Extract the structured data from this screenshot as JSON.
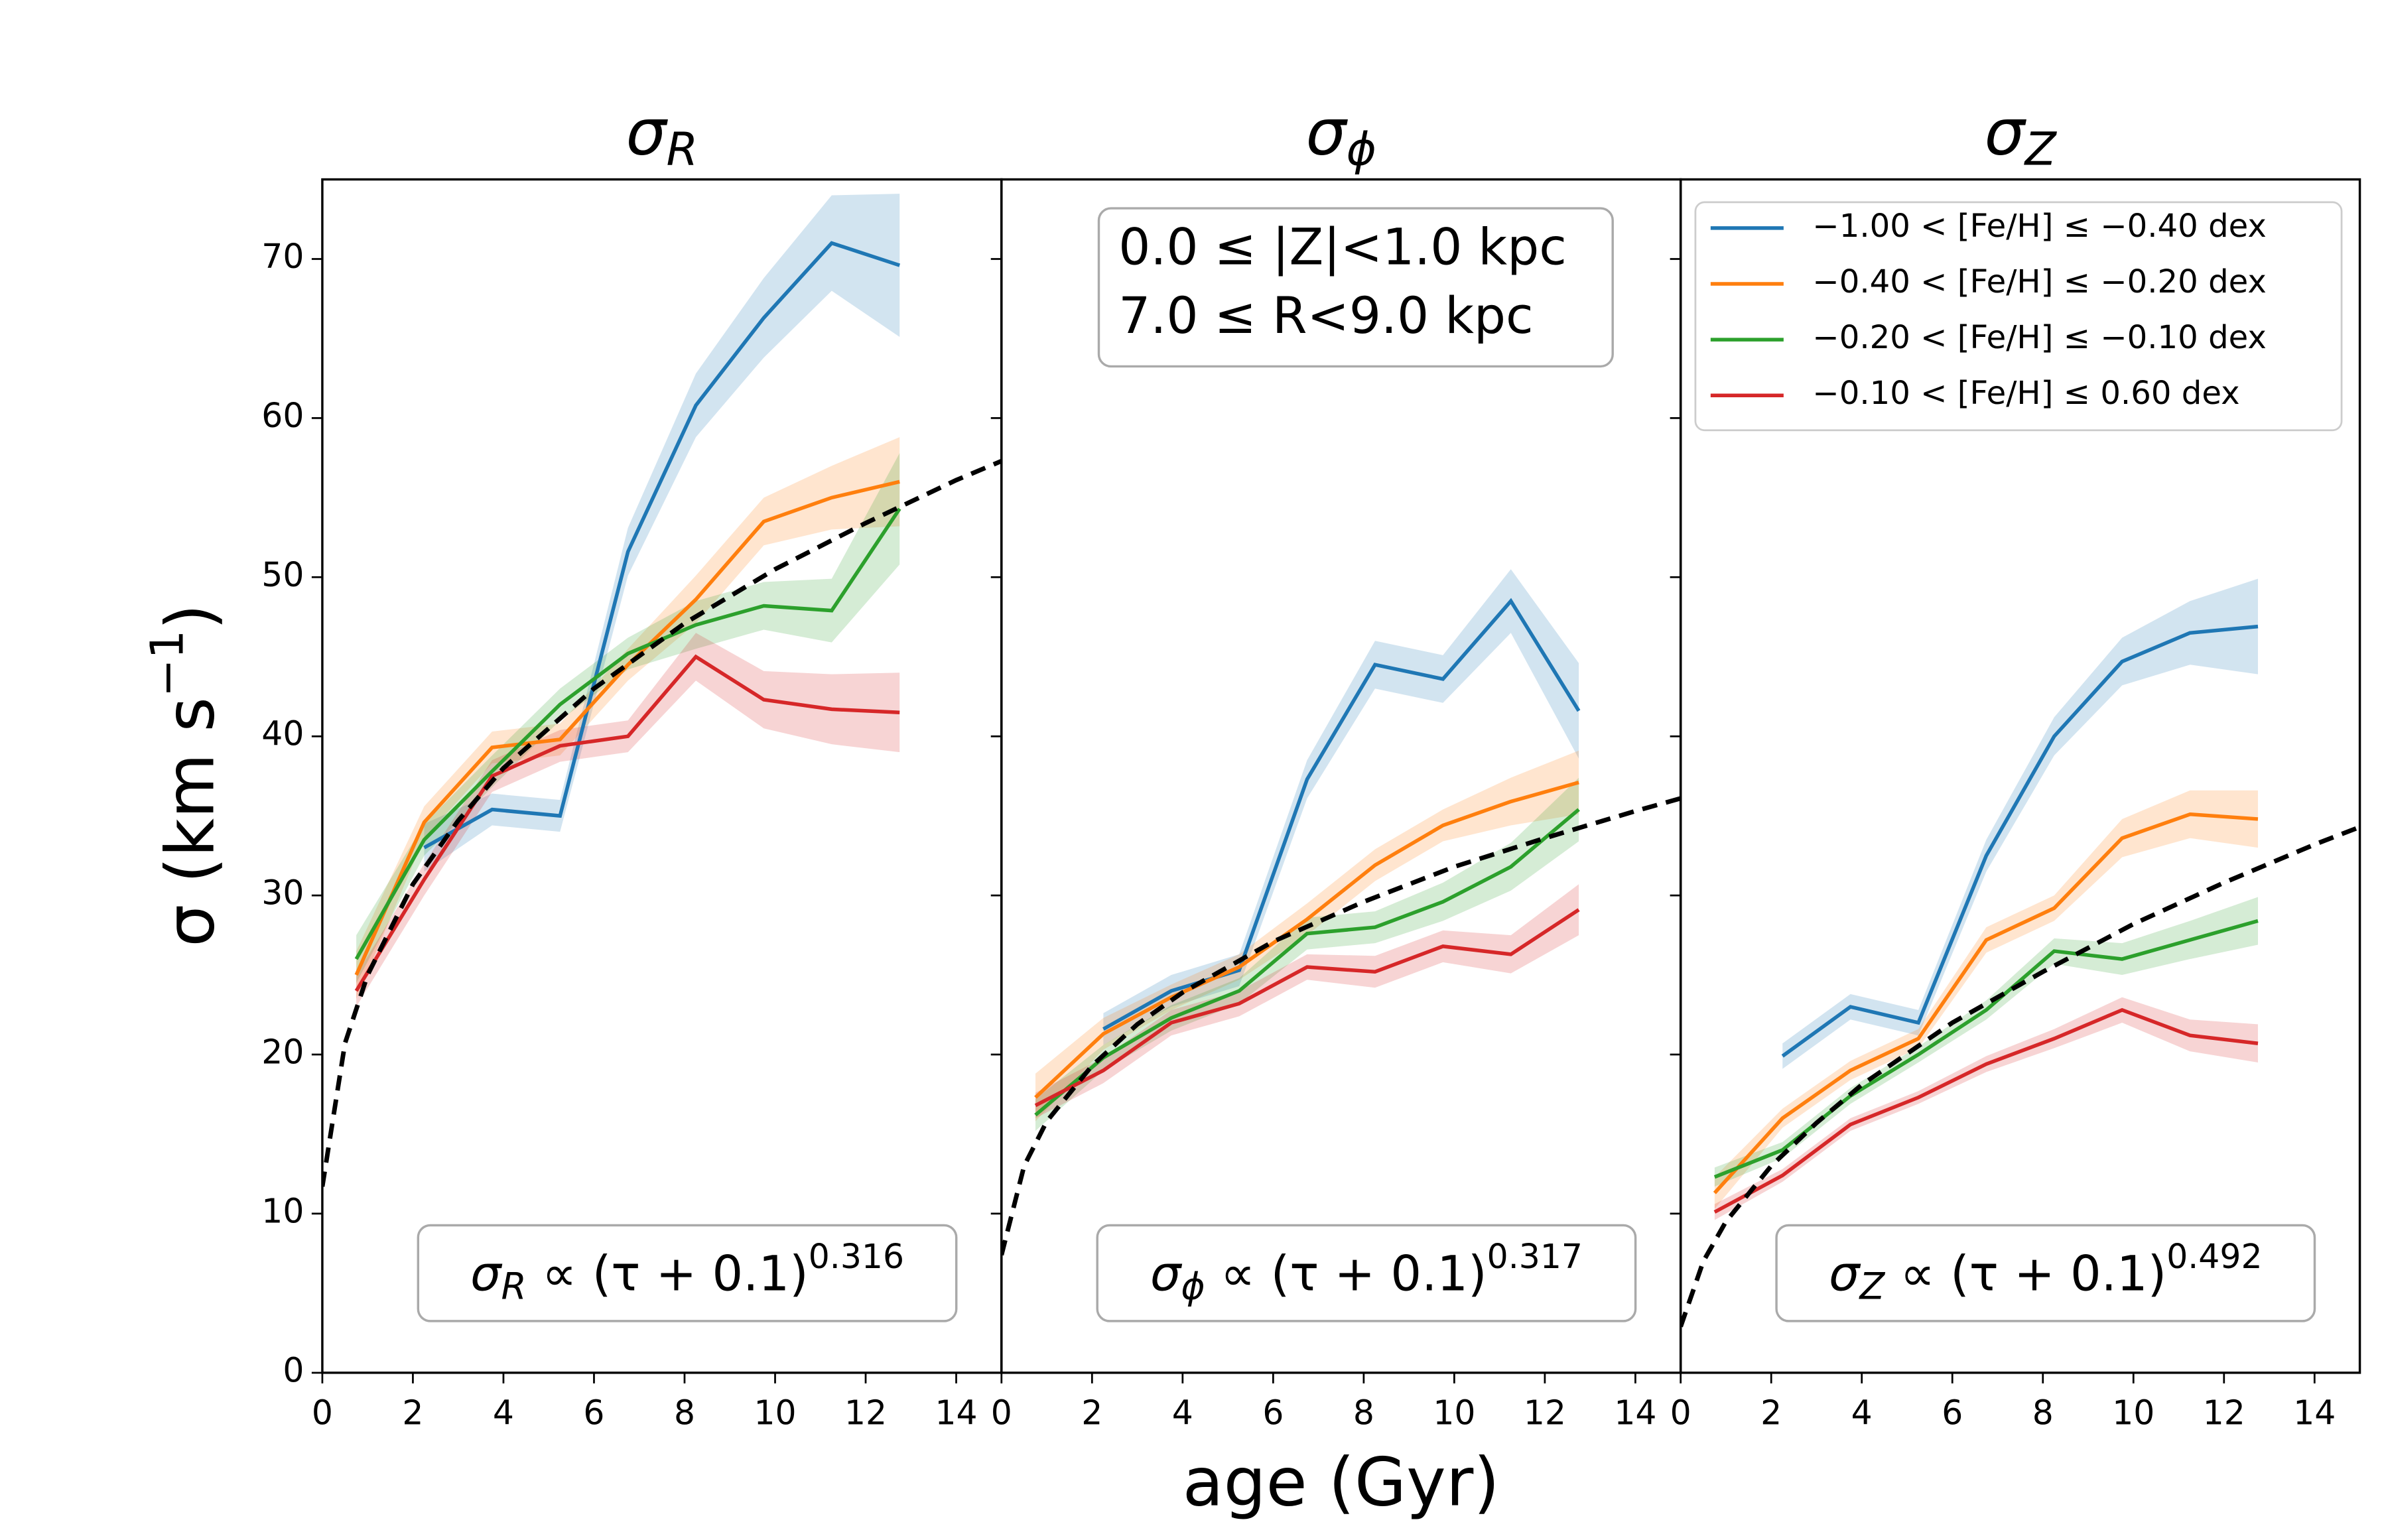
{
  "chart_data": [
    {
      "type": "line",
      "title": "σ",
      "title_subscript": "R",
      "ylabel": "σ (km s",
      "ylabel_superscript": "−1",
      "ylabel_end": ")",
      "x": [
        0.75,
        2.25,
        3.75,
        5.25,
        6.75,
        8.25,
        9.75,
        11.25,
        12.75
      ],
      "xlim": [
        0,
        15
      ],
      "xticks": [
        0,
        2,
        4,
        6,
        8,
        10,
        12,
        14
      ],
      "ylim": [
        0,
        75
      ],
      "yticks": [
        0,
        10,
        20,
        30,
        40,
        50,
        60,
        70
      ],
      "series": [
        {
          "color": "#1f77b4",
          "values": [
            null,
            33,
            35.4,
            35,
            51.6,
            60.8,
            66.3,
            71,
            69.6
          ],
          "errors": [
            null,
            1.5,
            1,
            1,
            1.5,
            2,
            2.5,
            3,
            4.5
          ]
        },
        {
          "color": "#ff7f0e",
          "values": [
            25,
            34.6,
            39.3,
            39.8,
            44.5,
            48.6,
            53.5,
            55,
            56
          ],
          "errors": [
            1.5,
            1,
            1,
            1,
            1,
            1.5,
            1.5,
            2,
            2.8
          ]
        },
        {
          "color": "#2ca02c",
          "values": [
            26,
            33.5,
            37.8,
            42,
            45.2,
            47,
            48.2,
            47.9,
            54.3
          ],
          "errors": [
            1.5,
            1,
            1,
            1,
            1,
            1.5,
            1.5,
            2,
            3.5
          ]
        },
        {
          "color": "#d62728",
          "values": [
            24,
            31,
            37.5,
            39.4,
            40,
            45,
            42.3,
            41.7,
            41.5
          ],
          "errors": [
            1,
            1,
            1,
            1,
            1,
            1.5,
            1.8,
            2.2,
            2.5
          ]
        }
      ],
      "fit": {
        "color": "#000000",
        "x": [
          0,
          0.5,
          1,
          2,
          3,
          4,
          6,
          8,
          10,
          12,
          14,
          15
        ],
        "values": [
          11.7,
          20.7,
          25.0,
          30.7,
          34.7,
          38.0,
          43.0,
          47.1,
          50.5,
          53.4,
          56.1,
          57.3
        ]
      },
      "annotation": {
        "symbol": "σ",
        "subscript": "R",
        "body": " ∝  (τ + 0.1)",
        "exponent": 0.316
      }
    },
    {
      "type": "line",
      "title": "σ",
      "title_subscript": "ϕ",
      "xlabel": "age (Gyr)",
      "x": [
        0.75,
        2.25,
        3.75,
        5.25,
        6.75,
        8.25,
        9.75,
        11.25,
        12.75
      ],
      "xlim": [
        0,
        15
      ],
      "xticks": [
        0,
        2,
        4,
        6,
        8,
        10,
        12,
        14
      ],
      "ylim": [
        0,
        75
      ],
      "yticks": [
        0,
        10,
        20,
        30,
        40,
        50,
        60,
        70
      ],
      "series": [
        {
          "color": "#1f77b4",
          "values": [
            null,
            21.6,
            24,
            25.3,
            37.3,
            44.5,
            43.6,
            48.5,
            41.6
          ],
          "errors": [
            null,
            1,
            1,
            1,
            1.2,
            1.5,
            1.5,
            2,
            3
          ]
        },
        {
          "color": "#ff7f0e",
          "values": [
            17.3,
            21.3,
            23.6,
            25.5,
            28.5,
            31.9,
            34.4,
            35.9,
            37.1
          ],
          "errors": [
            1.5,
            1,
            0.8,
            0.8,
            1,
            1,
            1,
            1.5,
            2
          ]
        },
        {
          "color": "#2ca02c",
          "values": [
            16.2,
            19.8,
            22.3,
            24,
            27.6,
            28,
            29.6,
            31.8,
            35.4
          ],
          "errors": [
            1,
            0.8,
            0.8,
            0.8,
            1,
            1,
            1.2,
            1.5,
            2
          ]
        },
        {
          "color": "#d62728",
          "values": [
            16.8,
            19,
            22,
            23.2,
            25.5,
            25.2,
            26.8,
            26.3,
            29.1
          ],
          "errors": [
            0.8,
            0.8,
            0.8,
            0.8,
            0.8,
            1,
            1,
            1.2,
            1.6
          ]
        }
      ],
      "fit": {
        "color": "#000000",
        "x": [
          0,
          0.5,
          1,
          2,
          3,
          4,
          6,
          8,
          10,
          12,
          14,
          15
        ],
        "values": [
          7.4,
          13.0,
          15.8,
          19.3,
          21.9,
          23.9,
          27.1,
          29.6,
          31.8,
          33.6,
          35.3,
          36.1
        ]
      },
      "annotation": {
        "symbol": "σ",
        "subscript": "ϕ",
        "body": " ∝  (τ + 0.1)",
        "exponent": 0.317
      },
      "text_box": [
        "0.0 ≤ |Z|<1.0 kpc",
        "7.0 ≤ R<9.0 kpc"
      ]
    },
    {
      "type": "line",
      "title": "σ",
      "title_subscript": "Z",
      "x": [
        0.75,
        2.25,
        3.75,
        5.25,
        6.75,
        8.25,
        9.75,
        11.25,
        12.75
      ],
      "xlim": [
        0,
        15
      ],
      "xticks": [
        0,
        2,
        4,
        6,
        8,
        10,
        12,
        14
      ],
      "ylim": [
        0,
        75
      ],
      "yticks": [
        0,
        10,
        20,
        30,
        40,
        50,
        60,
        70
      ],
      "legend": "upper right",
      "series": [
        {
          "name": "−1.00 < [Fe/H] ≤  −0.40 dex",
          "color": "#1f77b4",
          "values": [
            null,
            19.9,
            23,
            22,
            32.5,
            40,
            44.7,
            46.5,
            46.9
          ],
          "errors": [
            null,
            0.8,
            0.8,
            0.8,
            1,
            1.2,
            1.5,
            2,
            3
          ]
        },
        {
          "name": "−0.40 < [Fe/H] ≤  −0.20 dex",
          "color": "#ff7f0e",
          "values": [
            11.3,
            16,
            19,
            21,
            27.2,
            29.2,
            33.6,
            35.1,
            34.8
          ],
          "errors": [
            1,
            0.6,
            0.6,
            0.6,
            0.8,
            0.8,
            1.2,
            1.5,
            1.8
          ]
        },
        {
          "name": "−0.20 < [Fe/H] ≤  −0.10 dex",
          "color": "#2ca02c",
          "values": [
            12.3,
            14,
            17.4,
            20,
            22.8,
            26.5,
            26,
            27.2,
            28.4
          ],
          "errors": [
            0.6,
            0.5,
            0.5,
            0.5,
            0.6,
            0.8,
            1,
            1.2,
            1.5
          ]
        },
        {
          "name": "−0.10 < [Fe/H] ≤  0.60 dex",
          "color": "#d62728",
          "values": [
            10.1,
            12.4,
            15.6,
            17.3,
            19.4,
            21,
            22.8,
            21.2,
            20.7
          ],
          "errors": [
            0.5,
            0.4,
            0.4,
            0.4,
            0.5,
            0.6,
            0.8,
            1,
            1.2
          ]
        }
      ],
      "fit": {
        "color": "#000000",
        "x": [
          0,
          0.5,
          1,
          2,
          3,
          4,
          6,
          8,
          10,
          12,
          14,
          15
        ],
        "values": [
          2.9,
          7.0,
          9.5,
          13.0,
          15.7,
          18.1,
          22.0,
          25.2,
          28.2,
          30.8,
          33.2,
          34.3
        ]
      },
      "annotation": {
        "symbol": "σ",
        "subscript": "Z",
        "body": " ∝  (τ + 0.1)",
        "exponent": 0.492
      }
    }
  ]
}
